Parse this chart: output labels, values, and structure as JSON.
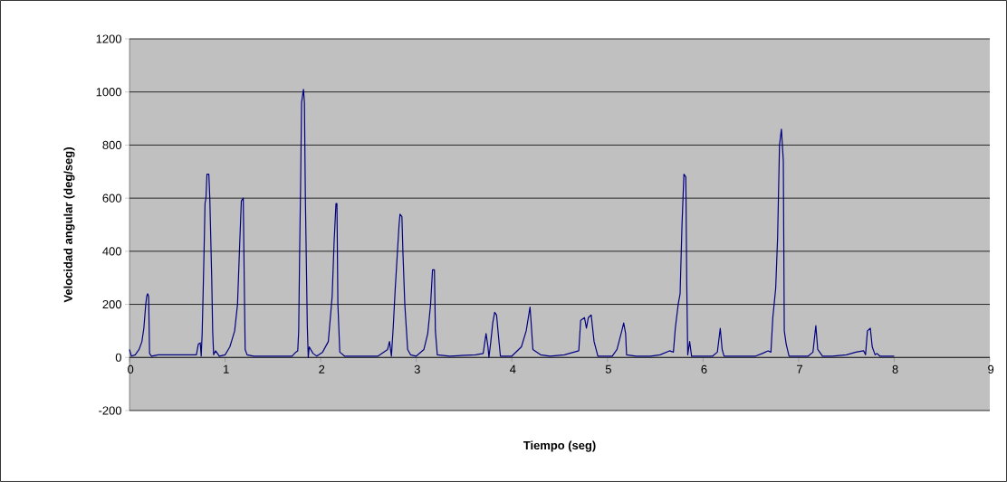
{
  "chart_data": {
    "type": "line",
    "xlabel": "Tiempo (seg)",
    "ylabel": "Velocidad angular (deg/seg)",
    "xlim": [
      0,
      9
    ],
    "ylim": [
      -200,
      1200
    ],
    "xticks": [
      0,
      1,
      2,
      3,
      4,
      5,
      6,
      7,
      8,
      9
    ],
    "yticks": [
      -200,
      0,
      200,
      400,
      600,
      800,
      1000,
      1200
    ],
    "grid": "y",
    "x": [
      0,
      0.02,
      0.06,
      0.1,
      0.13,
      0.15,
      0.17,
      0.18,
      0.19,
      0.2,
      0.21,
      0.23,
      0.3,
      0.7,
      0.72,
      0.74,
      0.75,
      0.76,
      0.77,
      0.78,
      0.79,
      0.8,
      0.81,
      0.83,
      0.84,
      0.86,
      0.87,
      0.88,
      0.9,
      0.94,
      1.0,
      1.05,
      1.1,
      1.13,
      1.15,
      1.17,
      1.19,
      1.2,
      1.21,
      1.23,
      1.3,
      1.7,
      1.74,
      1.76,
      1.77,
      1.78,
      1.79,
      1.8,
      1.82,
      1.83,
      1.84,
      1.86,
      1.87,
      1.88,
      1.92,
      1.96,
      2.02,
      2.08,
      2.12,
      2.14,
      2.16,
      2.17,
      2.18,
      2.2,
      2.25,
      2.6,
      2.7,
      2.72,
      2.74,
      2.76,
      2.78,
      2.8,
      2.82,
      2.83,
      2.85,
      2.86,
      2.88,
      2.91,
      2.94,
      3.0,
      3.08,
      3.12,
      3.15,
      3.17,
      3.19,
      3.2,
      3.22,
      3.35,
      3.62,
      3.7,
      3.73,
      3.75,
      3.76,
      3.78,
      3.8,
      3.82,
      3.84,
      3.86,
      3.88,
      4.0,
      4.1,
      4.15,
      4.19,
      4.2,
      4.22,
      4.3,
      4.4,
      4.55,
      4.65,
      4.7,
      4.72,
      4.76,
      4.78,
      4.8,
      4.83,
      4.86,
      4.9,
      5.05,
      5.1,
      5.15,
      5.17,
      5.19,
      5.2,
      5.3,
      5.45,
      5.55,
      5.65,
      5.69,
      5.71,
      5.74,
      5.76,
      5.78,
      5.8,
      5.82,
      5.83,
      5.84,
      5.86,
      5.88,
      6.0,
      6.1,
      6.15,
      6.18,
      6.2,
      6.22,
      6.35,
      6.55,
      6.62,
      6.68,
      6.71,
      6.73,
      6.76,
      6.78,
      6.8,
      6.82,
      6.84,
      6.85,
      6.87,
      6.9,
      7.1,
      7.15,
      7.18,
      7.2,
      7.25,
      7.35,
      7.5,
      7.6,
      7.68,
      7.7,
      7.72,
      7.75,
      7.77,
      7.8,
      7.82,
      7.85,
      8.0
    ],
    "series": [
      {
        "color": "#000080",
        "values": [
          30,
          5,
          10,
          30,
          60,
          110,
          200,
          230,
          240,
          230,
          15,
          5,
          10,
          10,
          50,
          55,
          5,
          90,
          240,
          400,
          580,
          600,
          690,
          690,
          600,
          300,
          100,
          10,
          25,
          5,
          10,
          40,
          100,
          200,
          400,
          590,
          600,
          300,
          30,
          10,
          5,
          5,
          20,
          25,
          100,
          400,
          650,
          960,
          1010,
          960,
          600,
          120,
          0,
          40,
          15,
          5,
          20,
          60,
          230,
          430,
          580,
          580,
          200,
          20,
          5,
          5,
          30,
          60,
          5,
          120,
          260,
          380,
          500,
          540,
          530,
          400,
          200,
          30,
          10,
          5,
          30,
          90,
          200,
          330,
          330,
          100,
          10,
          5,
          10,
          15,
          90,
          40,
          0,
          60,
          130,
          170,
          160,
          80,
          5,
          5,
          40,
          100,
          190,
          140,
          30,
          10,
          5,
          10,
          20,
          25,
          140,
          150,
          110,
          150,
          160,
          60,
          5,
          5,
          30,
          100,
          130,
          90,
          10,
          5,
          5,
          10,
          25,
          20,
          110,
          200,
          240,
          500,
          690,
          680,
          270,
          10,
          60,
          5,
          5,
          5,
          20,
          110,
          30,
          5,
          5,
          5,
          15,
          25,
          20,
          150,
          260,
          450,
          800,
          860,
          740,
          100,
          50,
          5,
          5,
          20,
          120,
          30,
          5,
          5,
          10,
          20,
          25,
          10,
          100,
          110,
          40,
          10,
          15,
          5,
          5
        ]
      }
    ]
  }
}
